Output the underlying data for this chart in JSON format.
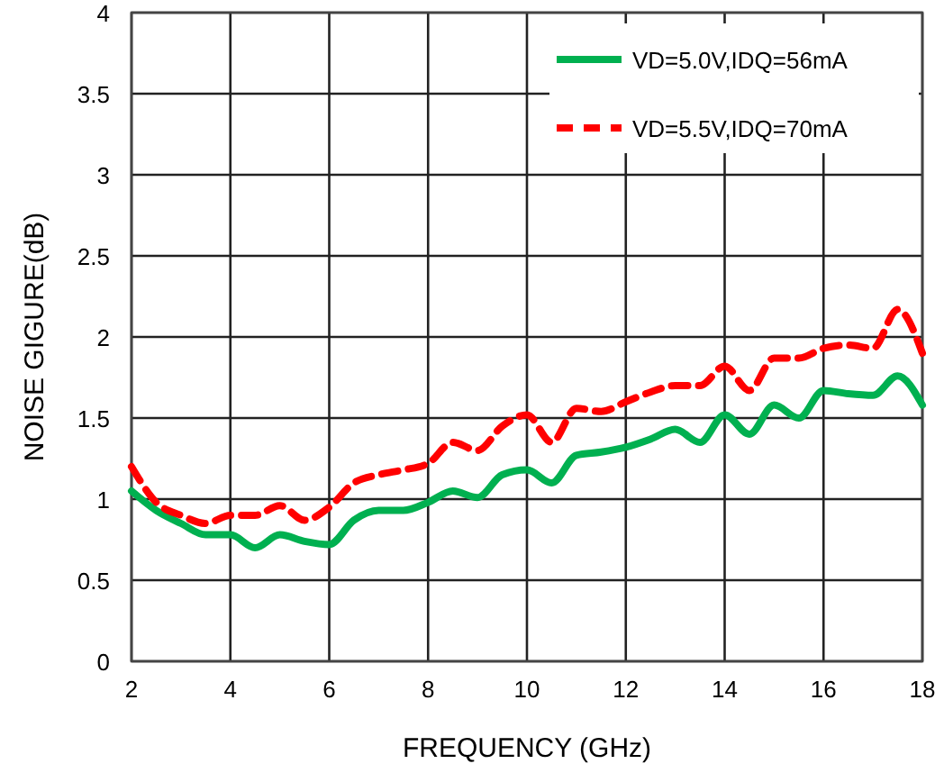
{
  "chart_data": {
    "type": "line",
    "xlabel": "FREQUENCY (GHz)",
    "ylabel": "NOISE GIGURE(dB)",
    "x": [
      2,
      2.5,
      3,
      3.5,
      4,
      4.5,
      5,
      5.5,
      6,
      6.5,
      7,
      7.5,
      8,
      8.5,
      9,
      9.5,
      10,
      10.5,
      11,
      11.5,
      12,
      12.5,
      13,
      13.5,
      14,
      14.5,
      15,
      15.5,
      16,
      16.5,
      17,
      17.5,
      18
    ],
    "series": [
      {
        "name": "VD=5.0V,IDQ=56mA",
        "color": "#00b050",
        "line_style": "solid",
        "values": [
          1.05,
          0.93,
          0.85,
          0.78,
          0.78,
          0.7,
          0.78,
          0.74,
          0.72,
          0.87,
          0.93,
          0.93,
          0.98,
          1.05,
          1.01,
          1.15,
          1.18,
          1.1,
          1.27,
          1.29,
          1.32,
          1.37,
          1.43,
          1.35,
          1.52,
          1.4,
          1.58,
          1.5,
          1.67,
          1.65,
          1.64,
          1.76,
          1.58
        ]
      },
      {
        "name": "VD=5.5V,IDQ=70mA",
        "color": "#ff0000",
        "line_style": "dashed",
        "values": [
          1.2,
          0.98,
          0.9,
          0.85,
          0.9,
          0.9,
          0.96,
          0.87,
          0.95,
          1.1,
          1.15,
          1.18,
          1.22,
          1.35,
          1.3,
          1.45,
          1.52,
          1.35,
          1.56,
          1.54,
          1.6,
          1.66,
          1.7,
          1.7,
          1.82,
          1.67,
          1.87,
          1.87,
          1.93,
          1.95,
          1.93,
          2.17,
          1.9
        ]
      }
    ],
    "xlim": [
      2,
      18
    ],
    "xticks": [
      2,
      4,
      6,
      8,
      10,
      12,
      14,
      16,
      18
    ],
    "ylim": [
      0,
      4
    ],
    "yticks": [
      0,
      0.5,
      1,
      1.5,
      2,
      2.5,
      3,
      3.5,
      4
    ],
    "grid": true,
    "legend": "top right"
  }
}
